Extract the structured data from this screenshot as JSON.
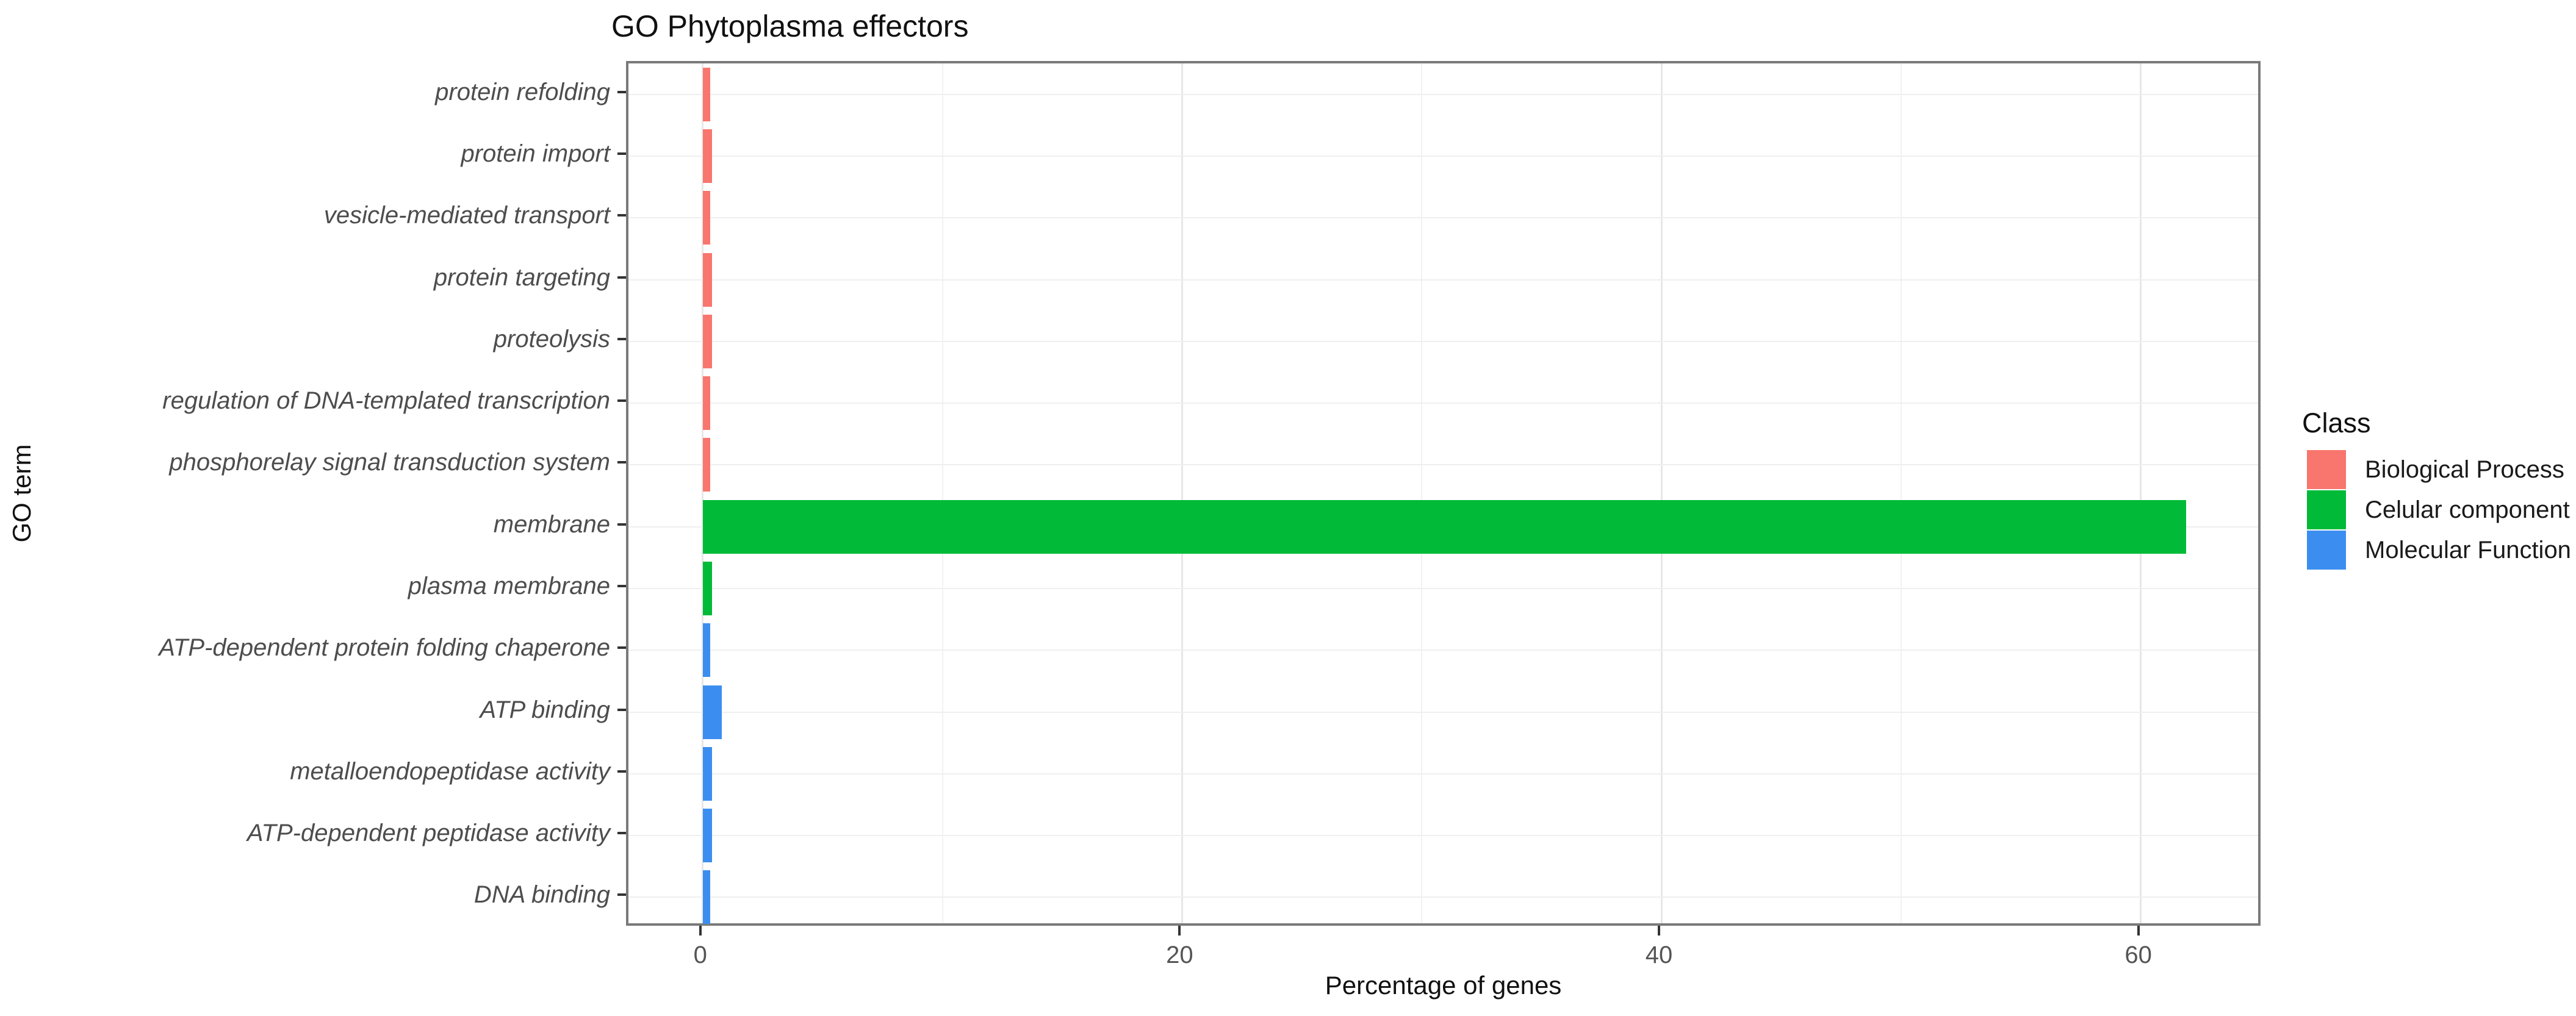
{
  "chart_data": {
    "type": "bar",
    "orientation": "horizontal",
    "title": "GO Phytoplasma effectors",
    "xlabel": "Percentage of genes",
    "ylabel": "GO term",
    "categories": [
      "protein refolding",
      "protein import",
      "vesicle-mediated transport",
      "protein targeting",
      "proteolysis",
      "regulation of DNA-templated transcription",
      "phosphorelay signal transduction system",
      "membrane",
      "plasma membrane",
      "ATP-dependent protein folding chaperone",
      "ATP binding",
      "metalloendopeptidase activity",
      "ATP-dependent peptidase activity",
      "DNA binding"
    ],
    "values": [
      0.3,
      0.4,
      0.3,
      0.4,
      0.4,
      0.3,
      0.3,
      61.9,
      0.4,
      0.3,
      0.8,
      0.4,
      0.4,
      0.3
    ],
    "classes": [
      "Biological Process",
      "Biological Process",
      "Biological Process",
      "Biological Process",
      "Biological Process",
      "Biological Process",
      "Biological Process",
      "Celular component",
      "Celular component",
      "Molecular Function",
      "Molecular Function",
      "Molecular Function",
      "Molecular Function",
      "Molecular Function"
    ],
    "class_colors": {
      "Biological Process": "#f8766d",
      "Celular component": "#00ba38",
      "Molecular Function": "#3b8ef0"
    },
    "legend": {
      "title": "Class",
      "position": "right",
      "entries": [
        {
          "label": "Biological Process",
          "color": "#f8766d"
        },
        {
          "label": "Celular component",
          "color": "#00ba38"
        },
        {
          "label": "Molecular Function",
          "color": "#3b8ef0"
        }
      ]
    },
    "x_ticks": [
      0,
      20,
      40,
      60
    ],
    "x_minor_gridlines": [
      10,
      30,
      50
    ],
    "xlim": [
      -3.1,
      65.1
    ],
    "grid": true
  }
}
